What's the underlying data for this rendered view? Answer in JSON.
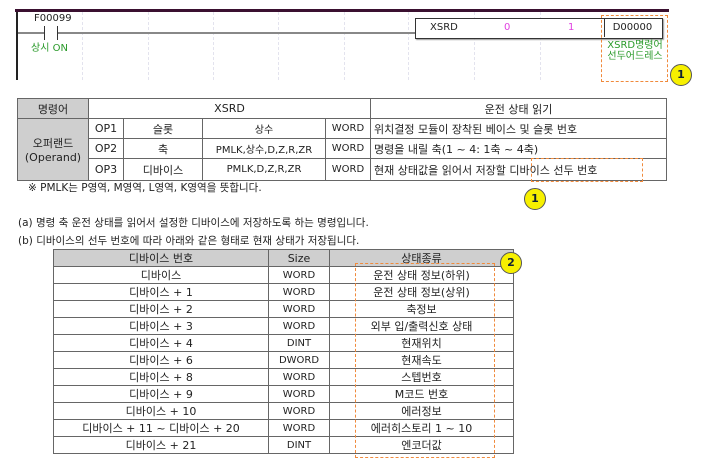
{
  "ladder": {
    "contact_address": "F00099",
    "contact_comment": "상시 ON",
    "instruction": "XSRD",
    "op1": "0",
    "op2": "1",
    "op3": "D00000",
    "op3_comment": "XSRD명령어 선두어드레스",
    "callout": "1"
  },
  "operand_table": {
    "header_label": "명령어",
    "instruction": "XSRD",
    "description": "운전 상태 읽기",
    "operand_label": "오퍼랜드",
    "operand_label_en": "(Operand)",
    "rows": [
      {
        "op": "OP1",
        "name": "슬롯",
        "types": "상수",
        "size": "WORD",
        "desc": "위치결정 모듈이 장착된 베이스 및 슬롯 번호"
      },
      {
        "op": "OP2",
        "name": "축",
        "types": "PMLK,상수,D,Z,R,ZR",
        "size": "WORD",
        "desc": "명령을 내릴 축(1 ~ 4: 1축 ~ 4축)"
      },
      {
        "op": "OP3",
        "name": "디바이스",
        "types": "PMLK,D,Z,R,ZR",
        "size": "WORD",
        "desc": "현재 상태값을 읽어서 저장할 디바이스 선두 번호"
      }
    ],
    "callout": "1"
  },
  "note": "※ PMLK는 P영역, M영역, L영역, K영역을 뜻합니다.",
  "para_a": "(a) 명령 축 운전 상태를 읽어서 설정한 디바이스에 저장하도록 하는 명령입니다.",
  "para_b": "(b) 디바이스의 선두 번호에 따라 아래와 같은 형태로 현재 상태가 저장됩니다.",
  "device_table": {
    "headers": [
      "디바이스 번호",
      "Size",
      "상태종류"
    ],
    "rows": [
      [
        "디바이스",
        "WORD",
        "운전 상태 정보(하위)"
      ],
      [
        "디바이스 + 1",
        "WORD",
        "운전 상태 정보(상위)"
      ],
      [
        "디바이스 + 2",
        "WORD",
        "축정보"
      ],
      [
        "디바이스 + 3",
        "WORD",
        "외부 입/출력신호 상태"
      ],
      [
        "디바이스 + 4",
        "DINT",
        "현재위치"
      ],
      [
        "디바이스 + 6",
        "DWORD",
        "현재속도"
      ],
      [
        "디바이스 + 8",
        "WORD",
        "스텝번호"
      ],
      [
        "디바이스 + 9",
        "WORD",
        "M코드 번호"
      ],
      [
        "디바이스 + 10",
        "WORD",
        "에러정보"
      ],
      [
        "디바이스 + 11 ~ 디바이스 + 20",
        "WORD",
        "에러히스토리 1 ~ 10"
      ],
      [
        "디바이스 + 21",
        "DINT",
        "엔코더값"
      ]
    ],
    "callout": "2"
  },
  "colors": {
    "highlight": "#f08a3c",
    "callout": "#f7f000",
    "comment": "#2a9a2a",
    "constant": "#e040e0",
    "header_bg": "#cfcfcf"
  }
}
